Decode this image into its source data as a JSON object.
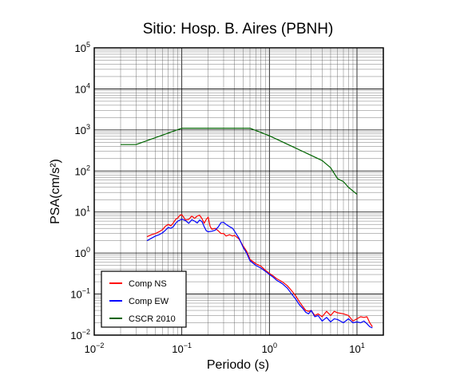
{
  "chart_data": {
    "type": "line",
    "title": "Sitio: Hosp. B. Aires (PBNH)",
    "xlabel": "Periodo (s)",
    "ylabel": "PSA(cm/s²)",
    "xscale": "log",
    "yscale": "log",
    "xlim": [
      0.01,
      20
    ],
    "ylim": [
      0.01,
      100000
    ],
    "xticks": [
      {
        "base": "10",
        "exp": "−2"
      },
      {
        "base": "10",
        "exp": "−1"
      },
      {
        "base": "10",
        "exp": "0"
      },
      {
        "base": "10",
        "exp": "1"
      }
    ],
    "yticks": [
      {
        "base": "10",
        "exp": "−2"
      },
      {
        "base": "10",
        "exp": "−1"
      },
      {
        "base": "10",
        "exp": "0"
      },
      {
        "base": "10",
        "exp": "1"
      },
      {
        "base": "10",
        "exp": "2"
      },
      {
        "base": "10",
        "exp": "3"
      },
      {
        "base": "10",
        "exp": "4"
      },
      {
        "base": "10",
        "exp": "5"
      }
    ],
    "grid": true,
    "legend_position": "bottom-left",
    "series": [
      {
        "name": "Comp NS",
        "color": "#ff0000",
        "points": [
          [
            0.04,
            2.5
          ],
          [
            0.045,
            2.8
          ],
          [
            0.05,
            3.0
          ],
          [
            0.055,
            3.3
          ],
          [
            0.06,
            3.7
          ],
          [
            0.065,
            4.5
          ],
          [
            0.07,
            5.0
          ],
          [
            0.075,
            4.6
          ],
          [
            0.08,
            5.4
          ],
          [
            0.085,
            6.6
          ],
          [
            0.09,
            7.2
          ],
          [
            0.095,
            8.3
          ],
          [
            0.1,
            8.6
          ],
          [
            0.105,
            7.5
          ],
          [
            0.11,
            6.4
          ],
          [
            0.12,
            6.6
          ],
          [
            0.13,
            8.0
          ],
          [
            0.14,
            7.0
          ],
          [
            0.15,
            8.0
          ],
          [
            0.16,
            8.3
          ],
          [
            0.17,
            6.9
          ],
          [
            0.18,
            5.3
          ],
          [
            0.19,
            6.6
          ],
          [
            0.2,
            7.5
          ],
          [
            0.21,
            4.5
          ],
          [
            0.22,
            3.8
          ],
          [
            0.24,
            4.0
          ],
          [
            0.26,
            3.5
          ],
          [
            0.28,
            3.0
          ],
          [
            0.3,
            3.0
          ],
          [
            0.32,
            2.6
          ],
          [
            0.35,
            2.8
          ],
          [
            0.38,
            2.6
          ],
          [
            0.4,
            2.7
          ],
          [
            0.45,
            2.2
          ],
          [
            0.5,
            1.5
          ],
          [
            0.55,
            1.1
          ],
          [
            0.6,
            0.7
          ],
          [
            0.7,
            0.55
          ],
          [
            0.8,
            0.48
          ],
          [
            0.9,
            0.38
          ],
          [
            1.0,
            0.32
          ],
          [
            1.1,
            0.28
          ],
          [
            1.2,
            0.24
          ],
          [
            1.4,
            0.2
          ],
          [
            1.6,
            0.16
          ],
          [
            1.8,
            0.12
          ],
          [
            2.0,
            0.09
          ],
          [
            2.2,
            0.065
          ],
          [
            2.4,
            0.05
          ],
          [
            2.6,
            0.04
          ],
          [
            2.8,
            0.038
          ],
          [
            3.0,
            0.04
          ],
          [
            3.3,
            0.03
          ],
          [
            3.6,
            0.033
          ],
          [
            4.0,
            0.028
          ],
          [
            4.5,
            0.038
          ],
          [
            5.0,
            0.03
          ],
          [
            5.5,
            0.038
          ],
          [
            6.0,
            0.035
          ],
          [
            7.0,
            0.033
          ],
          [
            8.0,
            0.03
          ],
          [
            9.0,
            0.022
          ],
          [
            10.0,
            0.025
          ],
          [
            11.0,
            0.028
          ],
          [
            12.0,
            0.027
          ],
          [
            13.0,
            0.028
          ],
          [
            14.0,
            0.02
          ],
          [
            15.0,
            0.016
          ]
        ]
      },
      {
        "name": "Comp EW",
        "color": "#0000ff",
        "points": [
          [
            0.04,
            2.0
          ],
          [
            0.045,
            2.3
          ],
          [
            0.05,
            2.6
          ],
          [
            0.055,
            2.8
          ],
          [
            0.06,
            3.1
          ],
          [
            0.065,
            3.6
          ],
          [
            0.07,
            4.2
          ],
          [
            0.075,
            4.0
          ],
          [
            0.08,
            4.4
          ],
          [
            0.085,
            5.3
          ],
          [
            0.09,
            6.0
          ],
          [
            0.1,
            6.7
          ],
          [
            0.11,
            6.2
          ],
          [
            0.12,
            5.3
          ],
          [
            0.13,
            6.5
          ],
          [
            0.14,
            6.0
          ],
          [
            0.15,
            5.4
          ],
          [
            0.16,
            6.4
          ],
          [
            0.17,
            5.8
          ],
          [
            0.18,
            4.4
          ],
          [
            0.19,
            3.5
          ],
          [
            0.2,
            3.3
          ],
          [
            0.22,
            3.4
          ],
          [
            0.24,
            3.6
          ],
          [
            0.26,
            4.3
          ],
          [
            0.28,
            5.5
          ],
          [
            0.3,
            5.6
          ],
          [
            0.32,
            5.0
          ],
          [
            0.35,
            4.4
          ],
          [
            0.38,
            4.0
          ],
          [
            0.4,
            3.4
          ],
          [
            0.45,
            2.3
          ],
          [
            0.5,
            1.4
          ],
          [
            0.55,
            1.0
          ],
          [
            0.6,
            0.65
          ],
          [
            0.7,
            0.5
          ],
          [
            0.8,
            0.43
          ],
          [
            0.9,
            0.36
          ],
          [
            1.0,
            0.3
          ],
          [
            1.1,
            0.26
          ],
          [
            1.2,
            0.22
          ],
          [
            1.4,
            0.18
          ],
          [
            1.6,
            0.14
          ],
          [
            1.8,
            0.1
          ],
          [
            2.0,
            0.075
          ],
          [
            2.2,
            0.055
          ],
          [
            2.4,
            0.045
          ],
          [
            2.6,
            0.036
          ],
          [
            2.8,
            0.033
          ],
          [
            3.0,
            0.04
          ],
          [
            3.3,
            0.028
          ],
          [
            3.6,
            0.03
          ],
          [
            4.0,
            0.022
          ],
          [
            4.5,
            0.027
          ],
          [
            5.0,
            0.021
          ],
          [
            5.5,
            0.025
          ],
          [
            6.0,
            0.024
          ],
          [
            7.0,
            0.02
          ],
          [
            8.0,
            0.025
          ],
          [
            9.0,
            0.02
          ],
          [
            10.0,
            0.021
          ],
          [
            11.0,
            0.02
          ],
          [
            12.0,
            0.022
          ],
          [
            13.0,
            0.019
          ],
          [
            14.0,
            0.016
          ],
          [
            15.0,
            0.015
          ]
        ]
      },
      {
        "name": "CSCR 2010",
        "color": "#006400",
        "points": [
          [
            0.02,
            440
          ],
          [
            0.03,
            440
          ],
          [
            0.1,
            1100
          ],
          [
            0.6,
            1100
          ],
          [
            1.0,
            720
          ],
          [
            2.0,
            360
          ],
          [
            4.0,
            180
          ],
          [
            5.0,
            120
          ],
          [
            6.0,
            65
          ],
          [
            7.0,
            55
          ],
          [
            8.0,
            40
          ],
          [
            10.0,
            27
          ]
        ]
      }
    ]
  }
}
